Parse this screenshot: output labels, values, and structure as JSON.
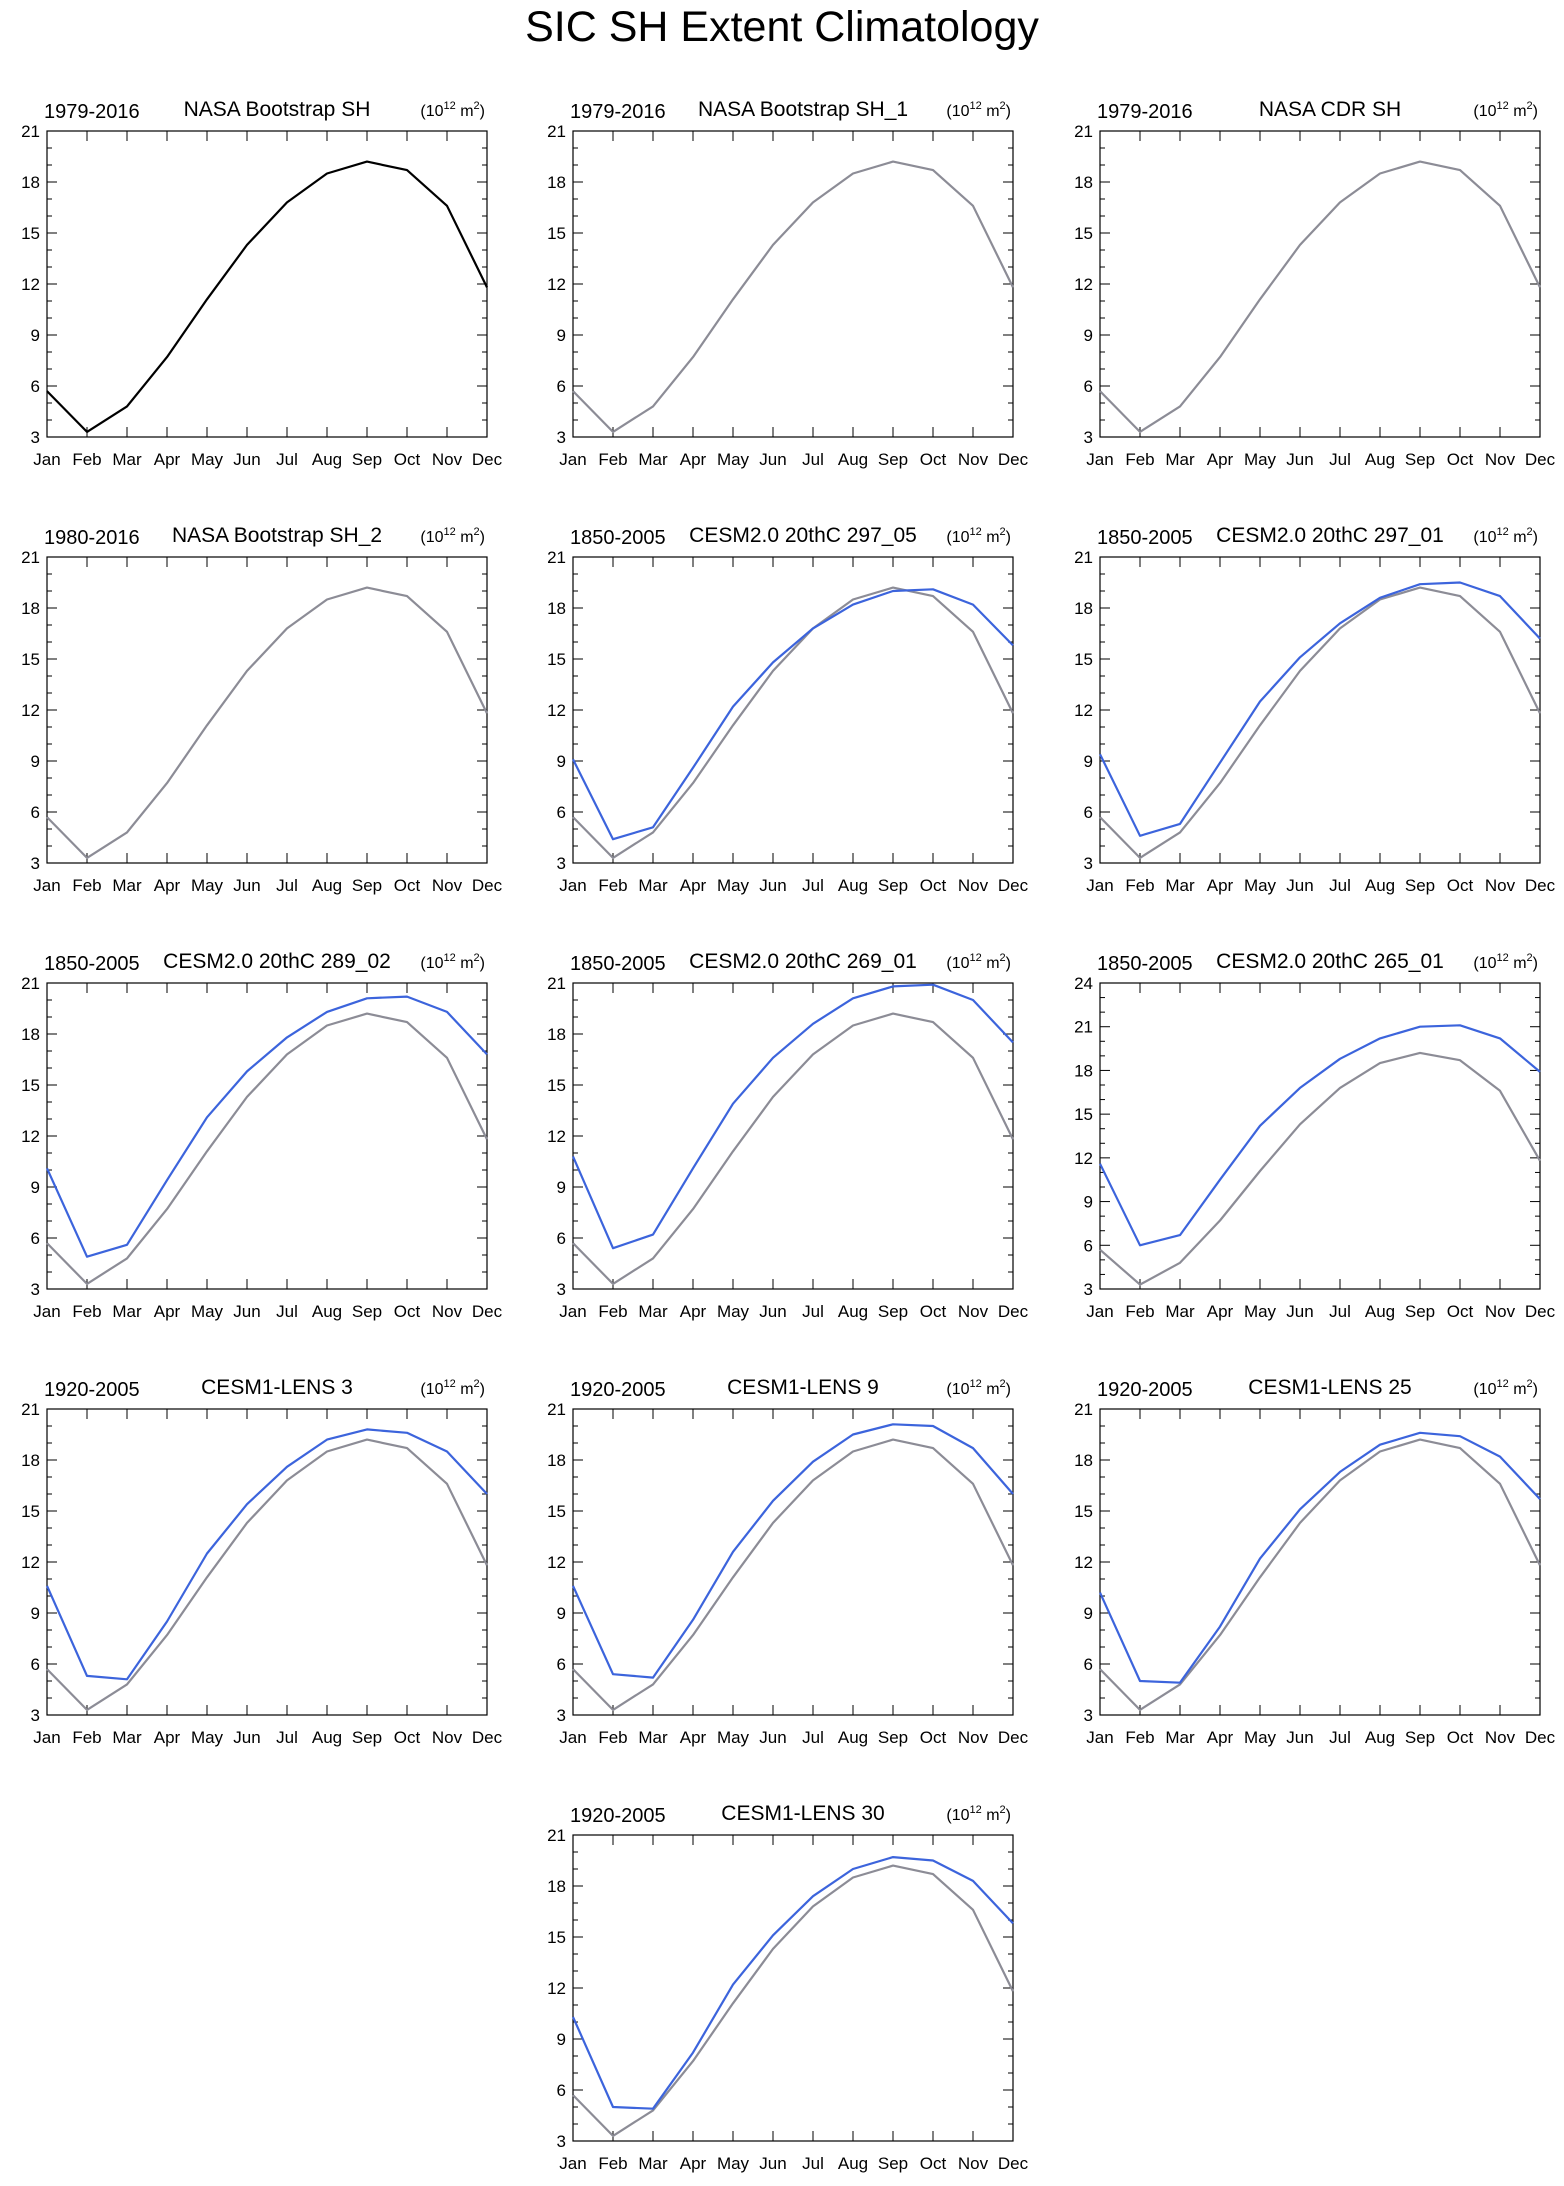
{
  "figure": {
    "title": "SIC SH Extent Climatology",
    "colors": {
      "observation": "#8c8c96",
      "observation_first_panel": "#000000",
      "model": "#3c64dc",
      "axis": "#000000"
    }
  },
  "chart_data": [
    {
      "type": "line",
      "period": "1979-2016",
      "title": "NASA Bootstrap SH",
      "units": {
        "base": "(10",
        "exp": "12",
        "mid": " m",
        "exp2": "2",
        "end": ")"
      },
      "categories": [
        "Jan",
        "Feb",
        "Mar",
        "Apr",
        "May",
        "Jun",
        "Jul",
        "Aug",
        "Sep",
        "Oct",
        "Nov",
        "Dec"
      ],
      "ylim": [
        3,
        21
      ],
      "yticks": [
        3,
        6,
        9,
        12,
        15,
        18,
        21
      ],
      "series": [
        {
          "name": "NASA Bootstrap SH",
          "role": "observation_first_panel",
          "values": [
            5.7,
            3.3,
            4.8,
            7.7,
            11.1,
            14.3,
            16.8,
            18.5,
            19.2,
            18.7,
            16.6,
            11.8
          ]
        }
      ]
    },
    {
      "type": "line",
      "period": "1979-2016",
      "title": "NASA Bootstrap SH_1",
      "units": {
        "base": "(10",
        "exp": "12",
        "mid": " m",
        "exp2": "2",
        "end": ")"
      },
      "categories": [
        "Jan",
        "Feb",
        "Mar",
        "Apr",
        "May",
        "Jun",
        "Jul",
        "Aug",
        "Sep",
        "Oct",
        "Nov",
        "Dec"
      ],
      "ylim": [
        3,
        21
      ],
      "yticks": [
        3,
        6,
        9,
        12,
        15,
        18,
        21
      ],
      "series": [
        {
          "name": "NASA Bootstrap SH_1",
          "role": "observation",
          "values": [
            5.7,
            3.3,
            4.8,
            7.7,
            11.1,
            14.3,
            16.8,
            18.5,
            19.2,
            18.7,
            16.6,
            11.8
          ]
        }
      ]
    },
    {
      "type": "line",
      "period": "1979-2016",
      "title": "NASA CDR SH",
      "units": {
        "base": "(10",
        "exp": "12",
        "mid": " m",
        "exp2": "2",
        "end": ")"
      },
      "categories": [
        "Jan",
        "Feb",
        "Mar",
        "Apr",
        "May",
        "Jun",
        "Jul",
        "Aug",
        "Sep",
        "Oct",
        "Nov",
        "Dec"
      ],
      "ylim": [
        3,
        21
      ],
      "yticks": [
        3,
        6,
        9,
        12,
        15,
        18,
        21
      ],
      "series": [
        {
          "name": "NASA CDR SH",
          "role": "observation",
          "values": [
            5.7,
            3.3,
            4.8,
            7.7,
            11.1,
            14.3,
            16.8,
            18.5,
            19.2,
            18.7,
            16.6,
            11.8
          ]
        }
      ]
    },
    {
      "type": "line",
      "period": "1980-2016",
      "title": "NASA Bootstrap SH_2",
      "units": {
        "base": "(10",
        "exp": "12",
        "mid": " m",
        "exp2": "2",
        "end": ")"
      },
      "categories": [
        "Jan",
        "Feb",
        "Mar",
        "Apr",
        "May",
        "Jun",
        "Jul",
        "Aug",
        "Sep",
        "Oct",
        "Nov",
        "Dec"
      ],
      "ylim": [
        3,
        21
      ],
      "yticks": [
        3,
        6,
        9,
        12,
        15,
        18,
        21
      ],
      "series": [
        {
          "name": "NASA Bootstrap SH_2",
          "role": "observation",
          "values": [
            5.7,
            3.3,
            4.8,
            7.7,
            11.1,
            14.3,
            16.8,
            18.5,
            19.2,
            18.7,
            16.6,
            11.8
          ]
        }
      ]
    },
    {
      "type": "line",
      "period": "1850-2005",
      "title": "CESM2.0 20thC 297_05",
      "units": {
        "base": "(10",
        "exp": "12",
        "mid": " m",
        "exp2": "2",
        "end": ")"
      },
      "categories": [
        "Jan",
        "Feb",
        "Mar",
        "Apr",
        "May",
        "Jun",
        "Jul",
        "Aug",
        "Sep",
        "Oct",
        "Nov",
        "Dec"
      ],
      "ylim": [
        3,
        21
      ],
      "yticks": [
        3,
        6,
        9,
        12,
        15,
        18,
        21
      ],
      "series": [
        {
          "name": "observation",
          "role": "observation",
          "values": [
            5.7,
            3.3,
            4.8,
            7.7,
            11.1,
            14.3,
            16.8,
            18.5,
            19.2,
            18.7,
            16.6,
            11.8
          ]
        },
        {
          "name": "CESM2.0 20thC 297_05",
          "role": "model",
          "values": [
            9.1,
            4.4,
            5.1,
            8.6,
            12.2,
            14.8,
            16.8,
            18.2,
            19.0,
            19.1,
            18.2,
            15.8
          ]
        }
      ]
    },
    {
      "type": "line",
      "period": "1850-2005",
      "title": "CESM2.0 20thC 297_01",
      "units": {
        "base": "(10",
        "exp": "12",
        "mid": " m",
        "exp2": "2",
        "end": ")"
      },
      "categories": [
        "Jan",
        "Feb",
        "Mar",
        "Apr",
        "May",
        "Jun",
        "Jul",
        "Aug",
        "Sep",
        "Oct",
        "Nov",
        "Dec"
      ],
      "ylim": [
        3,
        21
      ],
      "yticks": [
        3,
        6,
        9,
        12,
        15,
        18,
        21
      ],
      "series": [
        {
          "name": "observation",
          "role": "observation",
          "values": [
            5.7,
            3.3,
            4.8,
            7.7,
            11.1,
            14.3,
            16.8,
            18.5,
            19.2,
            18.7,
            16.6,
            11.8
          ]
        },
        {
          "name": "CESM2.0 20thC 297_01",
          "role": "model",
          "values": [
            9.4,
            4.6,
            5.3,
            8.9,
            12.5,
            15.1,
            17.1,
            18.6,
            19.4,
            19.5,
            18.7,
            16.2
          ]
        }
      ]
    },
    {
      "type": "line",
      "period": "1850-2005",
      "title": "CESM2.0 20thC 289_02",
      "units": {
        "base": "(10",
        "exp": "12",
        "mid": " m",
        "exp2": "2",
        "end": ")"
      },
      "categories": [
        "Jan",
        "Feb",
        "Mar",
        "Apr",
        "May",
        "Jun",
        "Jul",
        "Aug",
        "Sep",
        "Oct",
        "Nov",
        "Dec"
      ],
      "ylim": [
        3,
        21
      ],
      "yticks": [
        3,
        6,
        9,
        12,
        15,
        18,
        21
      ],
      "series": [
        {
          "name": "observation",
          "role": "observation",
          "values": [
            5.7,
            3.3,
            4.8,
            7.7,
            11.1,
            14.3,
            16.8,
            18.5,
            19.2,
            18.7,
            16.6,
            11.8
          ]
        },
        {
          "name": "CESM2.0 20thC 289_02",
          "role": "model",
          "values": [
            10.1,
            4.9,
            5.6,
            9.4,
            13.1,
            15.8,
            17.8,
            19.3,
            20.1,
            20.2,
            19.3,
            16.8
          ]
        }
      ]
    },
    {
      "type": "line",
      "period": "1850-2005",
      "title": "CESM2.0 20thC 269_01",
      "units": {
        "base": "(10",
        "exp": "12",
        "mid": " m",
        "exp2": "2",
        "end": ")"
      },
      "categories": [
        "Jan",
        "Feb",
        "Mar",
        "Apr",
        "May",
        "Jun",
        "Jul",
        "Aug",
        "Sep",
        "Oct",
        "Nov",
        "Dec"
      ],
      "ylim": [
        3,
        21
      ],
      "yticks": [
        3,
        6,
        9,
        12,
        15,
        18,
        21
      ],
      "series": [
        {
          "name": "observation",
          "role": "observation",
          "values": [
            5.7,
            3.3,
            4.8,
            7.7,
            11.1,
            14.3,
            16.8,
            18.5,
            19.2,
            18.7,
            16.6,
            11.8
          ]
        },
        {
          "name": "CESM2.0 20thC 269_01",
          "role": "model",
          "values": [
            10.8,
            5.4,
            6.2,
            10.1,
            13.9,
            16.6,
            18.6,
            20.1,
            20.8,
            20.9,
            20.0,
            17.5
          ]
        }
      ]
    },
    {
      "type": "line",
      "period": "1850-2005",
      "title": "CESM2.0 20thC 265_01",
      "units": {
        "base": "(10",
        "exp": "12",
        "mid": " m",
        "exp2": "2",
        "end": ")"
      },
      "categories": [
        "Jan",
        "Feb",
        "Mar",
        "Apr",
        "May",
        "Jun",
        "Jul",
        "Aug",
        "Sep",
        "Oct",
        "Nov",
        "Dec"
      ],
      "ylim": [
        3,
        24
      ],
      "yticks": [
        3,
        6,
        9,
        12,
        15,
        18,
        21,
        24
      ],
      "series": [
        {
          "name": "observation",
          "role": "observation",
          "values": [
            5.7,
            3.3,
            4.8,
            7.7,
            11.1,
            14.3,
            16.8,
            18.5,
            19.2,
            18.7,
            16.6,
            11.8
          ]
        },
        {
          "name": "CESM2.0 20thC 265_01",
          "role": "model",
          "values": [
            11.6,
            6.0,
            6.7,
            10.5,
            14.2,
            16.8,
            18.8,
            20.2,
            21.0,
            21.1,
            20.2,
            17.9
          ]
        }
      ]
    },
    {
      "type": "line",
      "period": "1920-2005",
      "title": "CESM1-LENS 3",
      "units": {
        "base": "(10",
        "exp": "12",
        "mid": " m",
        "exp2": "2",
        "end": ")"
      },
      "categories": [
        "Jan",
        "Feb",
        "Mar",
        "Apr",
        "May",
        "Jun",
        "Jul",
        "Aug",
        "Sep",
        "Oct",
        "Nov",
        "Dec"
      ],
      "ylim": [
        3,
        21
      ],
      "yticks": [
        3,
        6,
        9,
        12,
        15,
        18,
        21
      ],
      "series": [
        {
          "name": "observation",
          "role": "observation",
          "values": [
            5.7,
            3.3,
            4.8,
            7.7,
            11.1,
            14.3,
            16.8,
            18.5,
            19.2,
            18.7,
            16.6,
            11.8
          ]
        },
        {
          "name": "CESM1-LENS 3",
          "role": "model",
          "values": [
            10.6,
            5.3,
            5.1,
            8.5,
            12.5,
            15.4,
            17.6,
            19.2,
            19.8,
            19.6,
            18.5,
            16.0
          ]
        }
      ]
    },
    {
      "type": "line",
      "period": "1920-2005",
      "title": "CESM1-LENS 9",
      "units": {
        "base": "(10",
        "exp": "12",
        "mid": " m",
        "exp2": "2",
        "end": ")"
      },
      "categories": [
        "Jan",
        "Feb",
        "Mar",
        "Apr",
        "May",
        "Jun",
        "Jul",
        "Aug",
        "Sep",
        "Oct",
        "Nov",
        "Dec"
      ],
      "ylim": [
        3,
        21
      ],
      "yticks": [
        3,
        6,
        9,
        12,
        15,
        18,
        21
      ],
      "series": [
        {
          "name": "observation",
          "role": "observation",
          "values": [
            5.7,
            3.3,
            4.8,
            7.7,
            11.1,
            14.3,
            16.8,
            18.5,
            19.2,
            18.7,
            16.6,
            11.8
          ]
        },
        {
          "name": "CESM1-LENS 9",
          "role": "model",
          "values": [
            10.6,
            5.4,
            5.2,
            8.6,
            12.6,
            15.6,
            17.9,
            19.5,
            20.1,
            20.0,
            18.7,
            16.0
          ]
        }
      ]
    },
    {
      "type": "line",
      "period": "1920-2005",
      "title": "CESM1-LENS 25",
      "units": {
        "base": "(10",
        "exp": "12",
        "mid": " m",
        "exp2": "2",
        "end": ")"
      },
      "categories": [
        "Jan",
        "Feb",
        "Mar",
        "Apr",
        "May",
        "Jun",
        "Jul",
        "Aug",
        "Sep",
        "Oct",
        "Nov",
        "Dec"
      ],
      "ylim": [
        3,
        21
      ],
      "yticks": [
        3,
        6,
        9,
        12,
        15,
        18,
        21
      ],
      "series": [
        {
          "name": "observation",
          "role": "observation",
          "values": [
            5.7,
            3.3,
            4.8,
            7.7,
            11.1,
            14.3,
            16.8,
            18.5,
            19.2,
            18.7,
            16.6,
            11.8
          ]
        },
        {
          "name": "CESM1-LENS 25",
          "role": "model",
          "values": [
            10.2,
            5.0,
            4.9,
            8.2,
            12.2,
            15.1,
            17.3,
            18.9,
            19.6,
            19.4,
            18.2,
            15.7
          ]
        }
      ]
    },
    {
      "type": "line",
      "period": "1920-2005",
      "title": "CESM1-LENS 30",
      "units": {
        "base": "(10",
        "exp": "12",
        "mid": " m",
        "exp2": "2",
        "end": ")"
      },
      "categories": [
        "Jan",
        "Feb",
        "Mar",
        "Apr",
        "May",
        "Jun",
        "Jul",
        "Aug",
        "Sep",
        "Oct",
        "Nov",
        "Dec"
      ],
      "ylim": [
        3,
        21
      ],
      "yticks": [
        3,
        6,
        9,
        12,
        15,
        18,
        21
      ],
      "series": [
        {
          "name": "observation",
          "role": "observation",
          "values": [
            5.7,
            3.3,
            4.8,
            7.7,
            11.1,
            14.3,
            16.8,
            18.5,
            19.2,
            18.7,
            16.6,
            11.8
          ]
        },
        {
          "name": "CESM1-LENS 30",
          "role": "model",
          "values": [
            10.3,
            5.0,
            4.9,
            8.2,
            12.2,
            15.1,
            17.4,
            19.0,
            19.7,
            19.5,
            18.3,
            15.8
          ]
        }
      ]
    }
  ]
}
